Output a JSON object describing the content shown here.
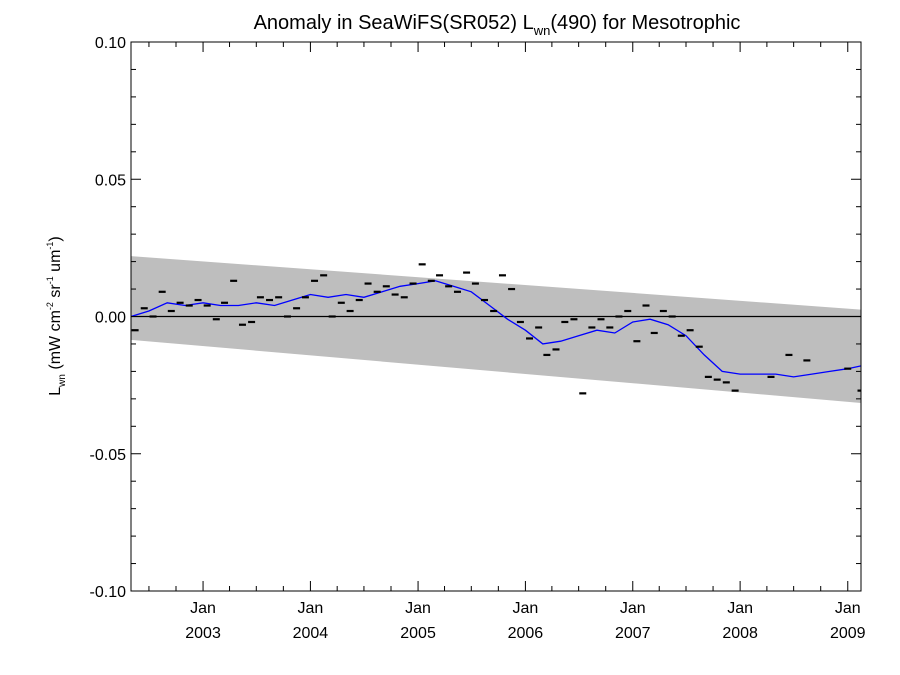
{
  "chart_data": {
    "type": "scatter",
    "title": {
      "main": "Anomaly in SeaWiFS(SR052) L",
      "sub": "wn",
      "tail": "(490) for Mesotrophic"
    },
    "ylabel": {
      "main": "L",
      "sub": "wn",
      "units_open": " (mW cm",
      "exp1": "-2",
      "sr": " sr",
      "exp2": "-1",
      "um": " um",
      "exp3": "-1",
      "units_close": ")"
    },
    "xlabel": "",
    "xlim": [
      "2002-05-01",
      "2009-02-15"
    ],
    "ylim": [
      -0.1,
      0.1
    ],
    "y_ticks": [
      {
        "value": 0.1,
        "label": "0.10"
      },
      {
        "value": 0.05,
        "label": "0.05"
      },
      {
        "value": 0.0,
        "label": "0.00"
      },
      {
        "value": -0.05,
        "label": "-0.05"
      },
      {
        "value": -0.1,
        "label": "-0.10"
      }
    ],
    "x_ticks": [
      {
        "date": "2003-01-01",
        "month": "Jan",
        "year": "2003"
      },
      {
        "date": "2004-01-01",
        "month": "Jan",
        "year": "2004"
      },
      {
        "date": "2005-01-01",
        "month": "Jan",
        "year": "2005"
      },
      {
        "date": "2006-01-01",
        "month": "Jan",
        "year": "2006"
      },
      {
        "date": "2007-01-01",
        "month": "Jan",
        "year": "2007"
      },
      {
        "date": "2008-01-01",
        "month": "Jan",
        "year": "2008"
      },
      {
        "date": "2009-01-01",
        "month": "Jan",
        "year": "2009"
      }
    ],
    "band": {
      "start": {
        "date": "2002-05-01",
        "upper": 0.022,
        "lower": -0.0085
      },
      "end": {
        "date": "2009-02-15",
        "upper": 0.0025,
        "lower": -0.0315
      }
    },
    "zero_line": 0.0,
    "colors": {
      "band": "#bebebe",
      "points": "#000000",
      "line": "#0000ff",
      "zero": "#000000"
    },
    "series": [
      {
        "style": "points",
        "x": [
          "2002-05-15",
          "2002-06-15",
          "2002-07-15",
          "2002-08-15",
          "2002-09-15",
          "2002-10-15",
          "2002-11-15",
          "2002-12-15",
          "2003-01-15",
          "2003-02-15",
          "2003-03-15",
          "2003-04-15",
          "2003-05-15",
          "2003-06-15",
          "2003-07-15",
          "2003-08-15",
          "2003-09-15",
          "2003-10-15",
          "2003-11-15",
          "2003-12-15",
          "2004-01-15",
          "2004-02-15",
          "2004-03-15",
          "2004-04-15",
          "2004-05-15",
          "2004-06-15",
          "2004-07-15",
          "2004-08-15",
          "2004-09-15",
          "2004-10-15",
          "2004-11-15",
          "2004-12-15",
          "2005-01-15",
          "2005-02-15",
          "2005-03-15",
          "2005-04-15",
          "2005-05-15",
          "2005-06-15",
          "2005-07-15",
          "2005-08-15",
          "2005-09-15",
          "2005-10-15",
          "2005-11-15",
          "2005-12-15",
          "2006-01-15",
          "2006-02-15",
          "2006-03-15",
          "2006-04-15",
          "2006-05-15",
          "2006-06-15",
          "2006-07-15",
          "2006-08-15",
          "2006-09-15",
          "2006-10-15",
          "2006-11-15",
          "2006-12-15",
          "2007-01-15",
          "2007-02-15",
          "2007-03-15",
          "2007-04-15",
          "2007-05-15",
          "2007-06-15",
          "2007-07-15",
          "2007-08-15",
          "2007-09-15",
          "2007-10-15",
          "2007-11-15",
          "2007-12-15",
          "2008-04-15",
          "2008-06-15",
          "2008-08-15",
          "2009-01-01",
          "2009-02-15"
        ],
        "y": [
          -0.005,
          0.003,
          0.0,
          0.009,
          0.002,
          0.005,
          0.004,
          0.006,
          0.004,
          -0.001,
          0.005,
          0.013,
          -0.003,
          -0.002,
          0.007,
          0.006,
          0.007,
          0.0,
          0.003,
          0.007,
          0.013,
          0.015,
          0.0,
          0.005,
          0.002,
          0.006,
          0.012,
          0.009,
          0.011,
          0.008,
          0.007,
          0.012,
          0.019,
          0.013,
          0.015,
          0.011,
          0.009,
          0.016,
          0.012,
          0.006,
          0.002,
          0.015,
          0.01,
          -0.002,
          -0.008,
          -0.004,
          -0.014,
          -0.012,
          -0.002,
          -0.001,
          -0.028,
          -0.004,
          -0.001,
          -0.004,
          0.0,
          0.002,
          -0.009,
          0.004,
          -0.006,
          0.002,
          0.0,
          -0.007,
          -0.005,
          -0.011,
          -0.022,
          -0.023,
          -0.024,
          -0.027,
          -0.022,
          -0.014,
          -0.016,
          -0.019,
          -0.027
        ]
      },
      {
        "style": "line",
        "x": [
          "2002-05-01",
          "2002-07-01",
          "2002-09-01",
          "2002-11-01",
          "2003-01-01",
          "2003-03-01",
          "2003-05-01",
          "2003-07-01",
          "2003-09-01",
          "2003-11-01",
          "2004-01-01",
          "2004-03-01",
          "2004-05-01",
          "2004-07-01",
          "2004-09-01",
          "2004-11-01",
          "2005-01-01",
          "2005-03-01",
          "2005-05-01",
          "2005-07-01",
          "2005-09-01",
          "2005-11-01",
          "2006-01-01",
          "2006-03-01",
          "2006-05-01",
          "2006-07-01",
          "2006-09-01",
          "2006-11-01",
          "2007-01-01",
          "2007-03-01",
          "2007-05-01",
          "2007-07-01",
          "2007-09-01",
          "2007-11-01",
          "2008-01-01",
          "2008-03-01",
          "2008-05-01",
          "2008-07-01",
          "2008-09-01",
          "2008-11-01",
          "2009-01-01",
          "2009-02-15"
        ],
        "y": [
          0.0,
          0.002,
          0.005,
          0.004,
          0.005,
          0.004,
          0.004,
          0.005,
          0.004,
          0.006,
          0.008,
          0.007,
          0.008,
          0.007,
          0.009,
          0.011,
          0.012,
          0.013,
          0.011,
          0.009,
          0.004,
          -0.001,
          -0.005,
          -0.01,
          -0.009,
          -0.007,
          -0.005,
          -0.006,
          -0.002,
          -0.001,
          -0.003,
          -0.007,
          -0.014,
          -0.02,
          -0.021,
          -0.021,
          -0.021,
          -0.022,
          -0.021,
          -0.02,
          -0.019,
          -0.018
        ]
      }
    ]
  }
}
